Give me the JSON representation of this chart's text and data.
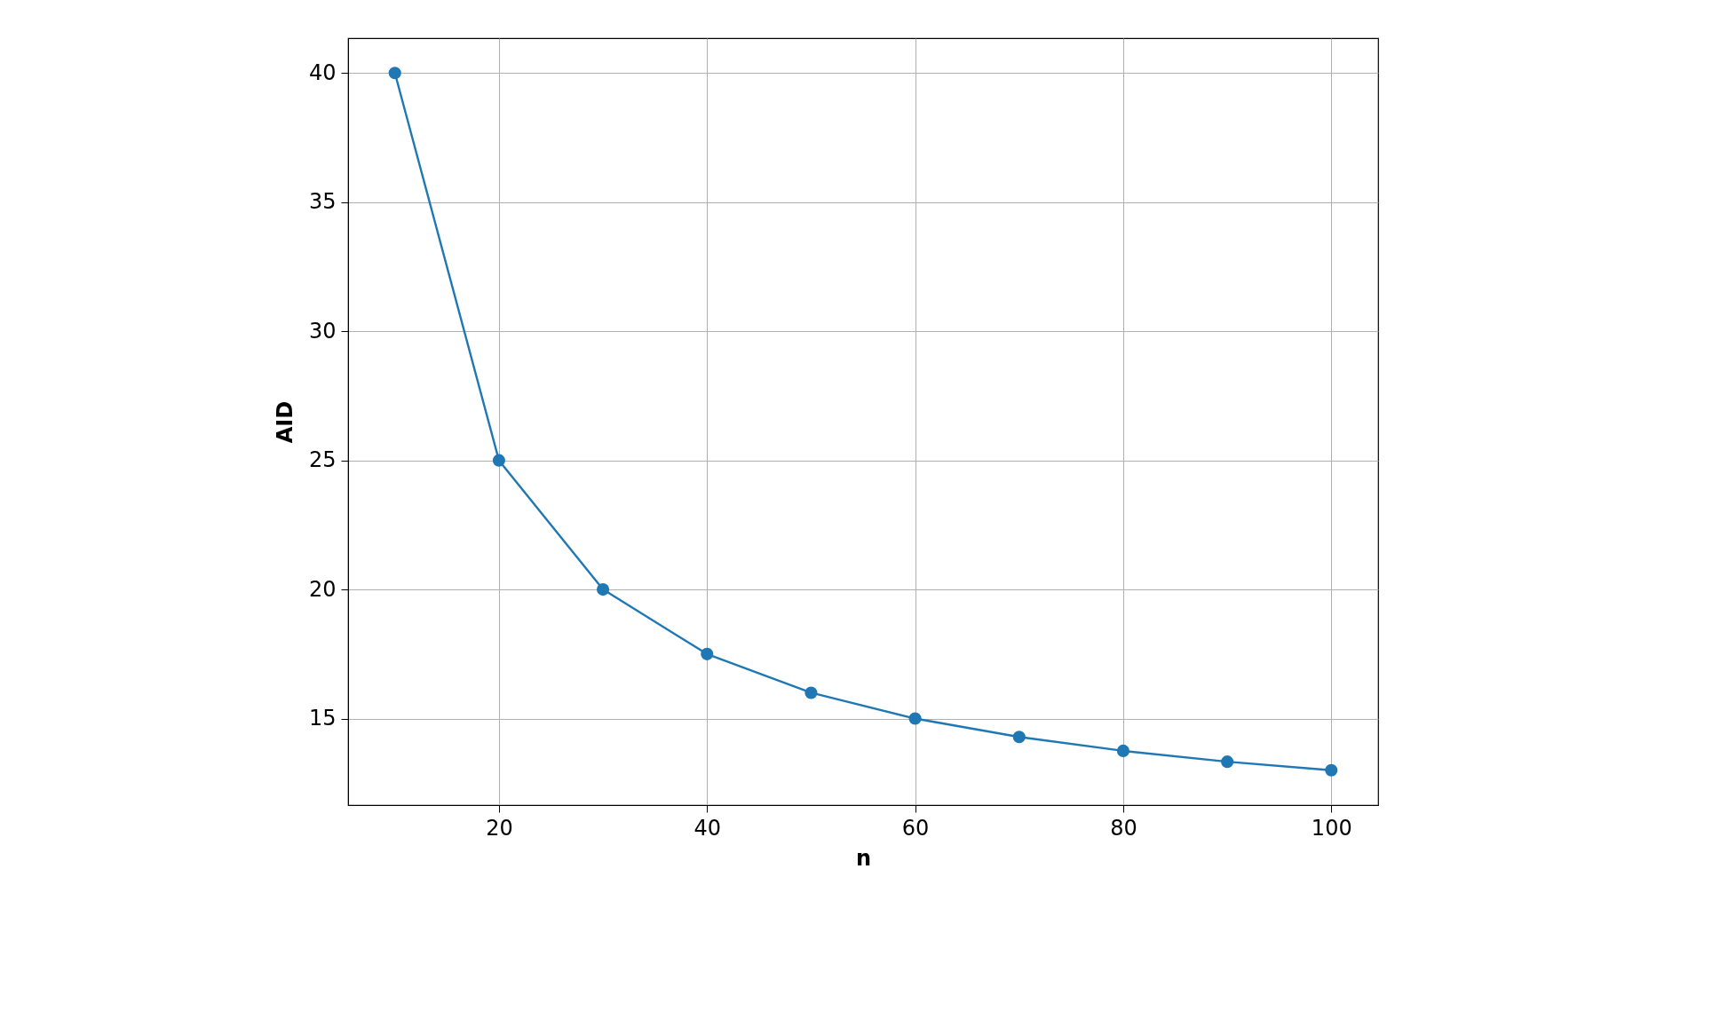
{
  "chart_data": {
    "type": "line",
    "xlabel": "n",
    "ylabel": "AID",
    "x": [
      10,
      20,
      30,
      40,
      50,
      60,
      70,
      80,
      90,
      100
    ],
    "series": [
      {
        "color": "#1f77b4",
        "values": [
          40,
          25,
          20,
          17.5,
          16,
          15,
          14.29,
          13.75,
          13.33,
          13
        ]
      }
    ],
    "xlim": [
      5.5,
      104.5
    ],
    "ylim": [
      11.65,
      41.35
    ],
    "xticks": [
      20,
      40,
      60,
      80,
      100
    ],
    "yticks": [
      15,
      20,
      25,
      30,
      35,
      40
    ],
    "grid": true,
    "marker": "circle",
    "line_style": "solid"
  }
}
